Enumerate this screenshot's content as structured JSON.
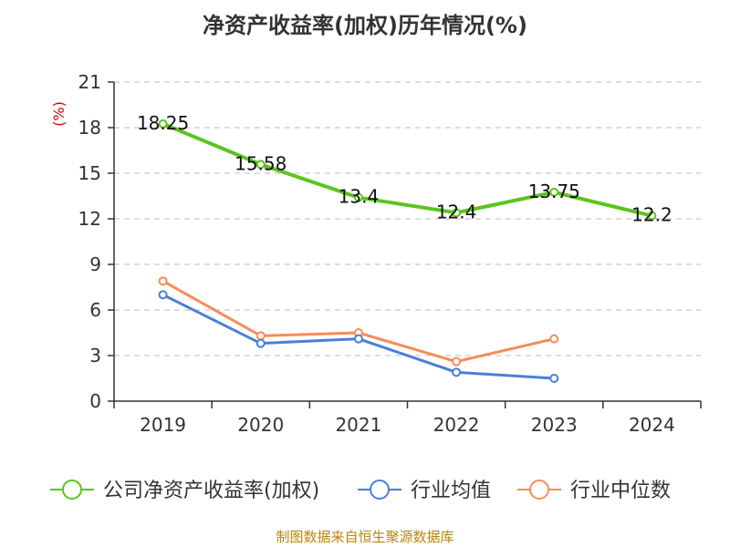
{
  "title": "净资产收益率(加权)历年情况(%)",
  "source": "制图数据来自恒生聚源数据库",
  "chart_data": {
    "type": "line",
    "title": "净资产收益率(加权)历年情况(%)",
    "ylabel": "(%)",
    "categories": [
      "2019",
      "2020",
      "2021",
      "2022",
      "2023",
      "2024"
    ],
    "ylim": [
      0,
      21
    ],
    "yticks": [
      0,
      3,
      6,
      9,
      12,
      15,
      18,
      21
    ],
    "grid": true,
    "legend_position": "bottom",
    "series": [
      {
        "name": "公司净资产收益率(加权)",
        "color": "#5cc41f",
        "values": [
          18.25,
          15.58,
          13.4,
          12.4,
          13.75,
          12.2
        ],
        "labels": [
          "18.25",
          "15.58",
          "13.4",
          "12.4",
          "13.75",
          "12.2"
        ]
      },
      {
        "name": "行业均值",
        "color": "#4a7fd6",
        "values": [
          7.0,
          3.8,
          4.1,
          1.9,
          1.5,
          null
        ]
      },
      {
        "name": "行业中位数",
        "color": "#f78c5a",
        "values": [
          7.9,
          4.3,
          4.5,
          2.6,
          4.1,
          null
        ]
      }
    ]
  }
}
